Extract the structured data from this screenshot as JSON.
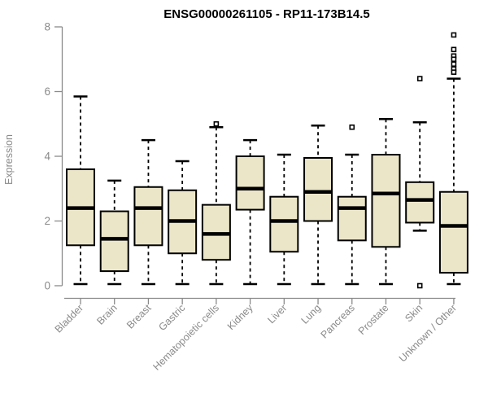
{
  "title": "ENSG00000261105 - RP11-173B14.5",
  "chart_data": {
    "type": "boxplot",
    "title": "ENSG00000261105 - RP11-173B14.5",
    "xlabel": "",
    "ylabel": "Expression",
    "ylim": [
      0,
      8
    ],
    "yticks": [
      0,
      2,
      4,
      6,
      8
    ],
    "grid": false,
    "legend": "none",
    "categories": [
      "Bladder",
      "Brain",
      "Breast",
      "Gastric",
      "Hematopoietic cells",
      "Kidney",
      "Liver",
      "Lung",
      "Pancreas",
      "Prostate",
      "Skin",
      "Unknown / Other"
    ],
    "series": [
      {
        "label": "Bladder",
        "whisker_low": 0.05,
        "q1": 1.25,
        "median": 2.4,
        "q3": 3.6,
        "whisker_high": 5.85,
        "outliers": []
      },
      {
        "label": "Brain",
        "whisker_low": 0.05,
        "q1": 0.45,
        "median": 1.45,
        "q3": 2.3,
        "whisker_high": 3.25,
        "outliers": []
      },
      {
        "label": "Breast",
        "whisker_low": 0.05,
        "q1": 1.25,
        "median": 2.4,
        "q3": 3.05,
        "whisker_high": 4.5,
        "outliers": []
      },
      {
        "label": "Gastric",
        "whisker_low": 0.05,
        "q1": 1.0,
        "median": 2.0,
        "q3": 2.95,
        "whisker_high": 3.85,
        "outliers": []
      },
      {
        "label": "Hematopoietic cells",
        "whisker_low": 0.05,
        "q1": 0.8,
        "median": 1.6,
        "q3": 2.5,
        "whisker_high": 4.9,
        "outliers": [
          5.0
        ]
      },
      {
        "label": "Kidney",
        "whisker_low": 0.05,
        "q1": 2.35,
        "median": 3.0,
        "q3": 4.0,
        "whisker_high": 4.5,
        "outliers": []
      },
      {
        "label": "Liver",
        "whisker_low": 0.05,
        "q1": 1.05,
        "median": 2.0,
        "q3": 2.75,
        "whisker_high": 4.05,
        "outliers": []
      },
      {
        "label": "Lung",
        "whisker_low": 0.05,
        "q1": 2.0,
        "median": 2.9,
        "q3": 3.95,
        "whisker_high": 4.95,
        "outliers": []
      },
      {
        "label": "Pancreas",
        "whisker_low": 0.05,
        "q1": 1.4,
        "median": 2.4,
        "q3": 2.75,
        "whisker_high": 4.05,
        "outliers": [
          4.9
        ]
      },
      {
        "label": "Prostate",
        "whisker_low": 0.05,
        "q1": 1.2,
        "median": 2.85,
        "q3": 4.05,
        "whisker_high": 5.15,
        "outliers": []
      },
      {
        "label": "Skin",
        "whisker_low": 1.7,
        "q1": 1.95,
        "median": 2.65,
        "q3": 3.2,
        "whisker_high": 5.05,
        "outliers": [
          6.4,
          0.0
        ]
      },
      {
        "label": "Unknown / Other",
        "whisker_low": 0.05,
        "q1": 0.4,
        "median": 1.85,
        "q3": 2.9,
        "whisker_high": 6.4,
        "outliers": [
          7.75,
          7.3,
          7.1,
          7.0,
          6.85,
          6.7,
          6.6
        ]
      }
    ],
    "colors": {
      "box_fill": "#ece6c9",
      "box_stroke": "#000000",
      "median": "#000000",
      "whisker": "#000000",
      "outlier_stroke": "#000000",
      "outlier_fill": "#ffffff",
      "axis": "#8a8a8a",
      "tick_text": "#8a8a8a",
      "title_text": "#000000",
      "background": "#ffffff"
    }
  }
}
